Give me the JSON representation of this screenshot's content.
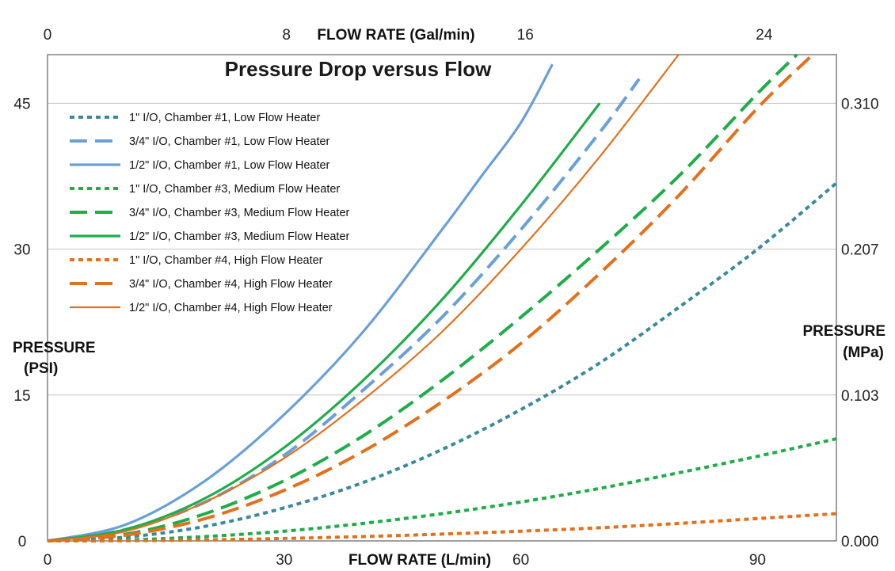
{
  "chart_data": {
    "type": "line",
    "title": "Pressure Drop versus Flow",
    "xlabel": "FLOW RATE (L/min)",
    "x2label": "FLOW RATE (Gal/min)",
    "ylabel": "PRESSURE (PSI)",
    "y2label": "PRESSURE (MPa)",
    "xlim": [
      0,
      100
    ],
    "ylim": [
      0,
      50
    ],
    "x_ticks": [
      0,
      30,
      60,
      90
    ],
    "x2_ticks": [
      "0",
      "8",
      "16",
      "24"
    ],
    "x2_tick_values": [
      0,
      8,
      16,
      24
    ],
    "y_ticks": [
      0,
      15,
      30,
      45
    ],
    "y2_ticks": [
      "0.000",
      "0.103",
      "0.207",
      "0.310"
    ],
    "y2_tick_psi": [
      0,
      15,
      30,
      45
    ],
    "grid": "horizontal",
    "legend_position": "top-left",
    "colors": {
      "teal": "#3a8a9c",
      "blue": "#6a9fd8",
      "green": "#1fad4a",
      "orange": "#e2701c",
      "frame": "#808080"
    },
    "series": [
      {
        "name": "1\" I/O, Chamber #1, Low Flow Heater",
        "color": "#3a8a9c",
        "style": "dotted",
        "x": [
          0,
          10,
          20,
          30,
          40,
          50,
          60,
          70,
          80,
          90,
          100
        ],
        "y": [
          0,
          0.4,
          1.5,
          3.4,
          6.0,
          9.4,
          13.5,
          18.3,
          24.0,
          30.0,
          36.8
        ]
      },
      {
        "name": "3/4\" I/O, Chamber #1, Low Flow Heater",
        "color": "#6a9fd8",
        "style": "dashed",
        "x": [
          0,
          10,
          20,
          30,
          40,
          50,
          60,
          70,
          75
        ],
        "y": [
          0,
          1.2,
          4.0,
          8.8,
          15.5,
          23.0,
          32.0,
          42.0,
          47.5
        ]
      },
      {
        "name": "1/2\" I/O, Chamber #1, Low Flow Heater",
        "color": "#6a9fd8",
        "style": "solid",
        "x": [
          0,
          10,
          20,
          30,
          40,
          50,
          55,
          60,
          64
        ],
        "y": [
          0,
          1.7,
          6.2,
          13.0,
          21.5,
          32.0,
          37.5,
          43.0,
          49.0
        ]
      },
      {
        "name": "1\" I/O, Chamber #3, Medium Flow Heater",
        "color": "#1fad4a",
        "style": "dotted",
        "x": [
          0,
          10,
          20,
          30,
          40,
          50,
          60,
          70,
          80,
          90,
          100
        ],
        "y": [
          0,
          0.1,
          0.45,
          1.0,
          1.8,
          2.8,
          4.0,
          5.4,
          7.0,
          8.7,
          10.5
        ]
      },
      {
        "name": "3/4\" I/O, Chamber #3, Medium Flow Heater",
        "color": "#1fad4a",
        "style": "dashed",
        "x": [
          0,
          10,
          20,
          30,
          40,
          50,
          60,
          70,
          80,
          90,
          95
        ],
        "y": [
          0,
          0.7,
          2.8,
          6.2,
          10.8,
          16.5,
          23.0,
          30.0,
          37.5,
          46.0,
          50.0
        ]
      },
      {
        "name": "1/2\" I/O, Chamber #3, Medium Flow Heater",
        "color": "#1fad4a",
        "style": "solid",
        "x": [
          0,
          10,
          20,
          30,
          40,
          50,
          60,
          70
        ],
        "y": [
          0,
          1.2,
          4.4,
          9.6,
          16.5,
          24.8,
          34.5,
          45.0
        ]
      },
      {
        "name": "1\" I/O, Chamber #4, High Flow Heater",
        "color": "#e2701c",
        "style": "dotted",
        "x": [
          0,
          10,
          20,
          30,
          40,
          50,
          60,
          70,
          80,
          90,
          100
        ],
        "y": [
          0,
          0.02,
          0.1,
          0.25,
          0.45,
          0.7,
          1.0,
          1.35,
          1.8,
          2.3,
          2.8
        ]
      },
      {
        "name": "3/4\" I/O, Chamber #4, High Flow Heater",
        "color": "#e2701c",
        "style": "dashed",
        "x": [
          0,
          10,
          20,
          30,
          40,
          50,
          60,
          70,
          80,
          90,
          97
        ],
        "y": [
          0,
          0.6,
          2.3,
          5.2,
          9.2,
          14.3,
          20.3,
          27.5,
          35.5,
          44.5,
          50.0
        ]
      },
      {
        "name": "1/2\" I/O, Chamber #4, High Flow Heater",
        "color": "#e2701c",
        "style": "solid",
        "x": [
          0,
          10,
          20,
          30,
          40,
          50,
          60,
          70,
          80
        ],
        "y": [
          0,
          1.0,
          4.0,
          8.5,
          14.5,
          21.5,
          30.0,
          39.5,
          50.0
        ]
      }
    ]
  }
}
